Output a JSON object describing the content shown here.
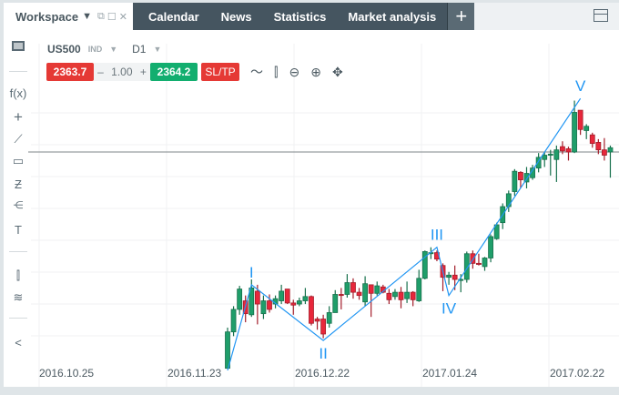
{
  "workspace": {
    "label": "Workspace"
  },
  "tabs": [
    {
      "label": "Calendar"
    },
    {
      "label": "News"
    },
    {
      "label": "Statistics"
    },
    {
      "label": "Market analysis"
    }
  ],
  "add_tab": "+",
  "instrument": {
    "symbol": "US500",
    "type": "IND",
    "timeframe": "D1"
  },
  "trade": {
    "sell_price": "2363.7",
    "qty_minus": "–",
    "quantity": "1.00",
    "qty_plus": "+",
    "buy_price": "2364.2",
    "sltp": "SL/TP"
  },
  "left_tools": [
    "f(x)",
    "+",
    "line",
    "rect",
    "fib",
    "pitchfork",
    "T",
    "candles",
    "layers",
    "share"
  ],
  "colors": {
    "up": "#1f9e6a",
    "down": "#e8273b",
    "wave": "#2196f3",
    "price_line": "#7d8589"
  },
  "chart_data": {
    "type": "candlestick",
    "x_tick_labels": [
      "2016.10.25",
      "2016.11.23",
      "2016.12.22",
      "2017.01.24",
      "2017.02.22"
    ],
    "current_price": 2364,
    "candles_ohlc": [
      [
        2162,
        2200,
        2162,
        2196
      ],
      [
        2196,
        2220,
        2192,
        2217
      ],
      [
        2217,
        2239,
        2212,
        2236
      ],
      [
        2225,
        2230,
        2205,
        2213
      ],
      [
        2212,
        2245,
        2210,
        2237
      ],
      [
        2234,
        2240,
        2203,
        2222
      ],
      [
        2213,
        2230,
        2208,
        2225
      ],
      [
        2225,
        2231,
        2214,
        2217
      ],
      [
        2222,
        2230,
        2218,
        2227
      ],
      [
        2225,
        2240,
        2222,
        2234
      ],
      [
        2236,
        2236,
        2222,
        2223
      ],
      [
        2223,
        2226,
        2212,
        2221
      ],
      [
        2222,
        2228,
        2220,
        2225
      ],
      [
        2225,
        2237,
        2222,
        2229
      ],
      [
        2229,
        2230,
        2202,
        2204
      ],
      [
        2208,
        2210,
        2198,
        2206
      ],
      [
        2208,
        2212,
        2190,
        2194
      ],
      [
        2204,
        2220,
        2200,
        2214
      ],
      [
        2214,
        2235,
        2214,
        2231
      ],
      [
        2231,
        2237,
        2217,
        2230
      ],
      [
        2231,
        2250,
        2228,
        2242
      ],
      [
        2242,
        2246,
        2227,
        2233
      ],
      [
        2233,
        2237,
        2226,
        2230
      ],
      [
        2224,
        2248,
        2220,
        2241
      ],
      [
        2240,
        2240,
        2210,
        2232
      ],
      [
        2232,
        2243,
        2230,
        2239
      ],
      [
        2238,
        2240,
        2232,
        2233
      ],
      [
        2232,
        2236,
        2222,
        2226
      ],
      [
        2229,
        2236,
        2226,
        2233
      ],
      [
        2233,
        2238,
        2218,
        2226
      ],
      [
        2227,
        2243,
        2223,
        2233
      ],
      [
        2233,
        2234,
        2220,
        2226
      ],
      [
        2225,
        2254,
        2224,
        2246
      ],
      [
        2246,
        2272,
        2245,
        2271
      ],
      [
        2269,
        2275,
        2264,
        2270
      ],
      [
        2270,
        2272,
        2262,
        2264
      ],
      [
        2258,
        2260,
        2234,
        2247
      ],
      [
        2247,
        2252,
        2240,
        2249
      ],
      [
        2249,
        2258,
        2235,
        2245
      ],
      [
        2244,
        2250,
        2233,
        2245
      ],
      [
        2245,
        2271,
        2242,
        2269
      ],
      [
        2269,
        2272,
        2255,
        2260
      ],
      [
        2260,
        2269,
        2258,
        2259
      ],
      [
        2257,
        2266,
        2253,
        2265
      ],
      [
        2265,
        2287,
        2261,
        2285
      ],
      [
        2283,
        2298,
        2282,
        2296
      ],
      [
        2298,
        2316,
        2292,
        2313
      ],
      [
        2313,
        2328,
        2308,
        2325
      ],
      [
        2327,
        2348,
        2323,
        2346
      ],
      [
        2345,
        2346,
        2330,
        2338
      ],
      [
        2336,
        2350,
        2330,
        2344
      ],
      [
        2340,
        2352,
        2338,
        2349
      ],
      [
        2349,
        2363,
        2345,
        2359
      ],
      [
        2357,
        2364,
        2350,
        2361
      ],
      [
        2361,
        2366,
        2342,
        2362
      ],
      [
        2357,
        2370,
        2336,
        2366
      ],
      [
        2369,
        2374,
        2362,
        2365
      ],
      [
        2367,
        2369,
        2356,
        2364
      ],
      [
        2364,
        2412,
        2363,
        2401
      ],
      [
        2403,
        2403,
        2380,
        2385
      ],
      [
        2384,
        2390,
        2376,
        2388
      ],
      [
        2380,
        2382,
        2368,
        2372
      ],
      [
        2373,
        2376,
        2362,
        2366
      ],
      [
        2366,
        2377,
        2356,
        2361
      ],
      [
        2364,
        2370,
        2340,
        2368
      ]
    ],
    "elliott_wave": [
      {
        "label": "",
        "candle": 0,
        "price": 2160
      },
      {
        "label": "I",
        "candle": 4,
        "price": 2240
      },
      {
        "label": "II",
        "candle": 16,
        "price": 2188
      },
      {
        "label": "III",
        "candle": 35,
        "price": 2275
      },
      {
        "label": "IV",
        "candle": 37,
        "price": 2230
      },
      {
        "label": "V",
        "candle": 59,
        "price": 2414
      }
    ]
  }
}
